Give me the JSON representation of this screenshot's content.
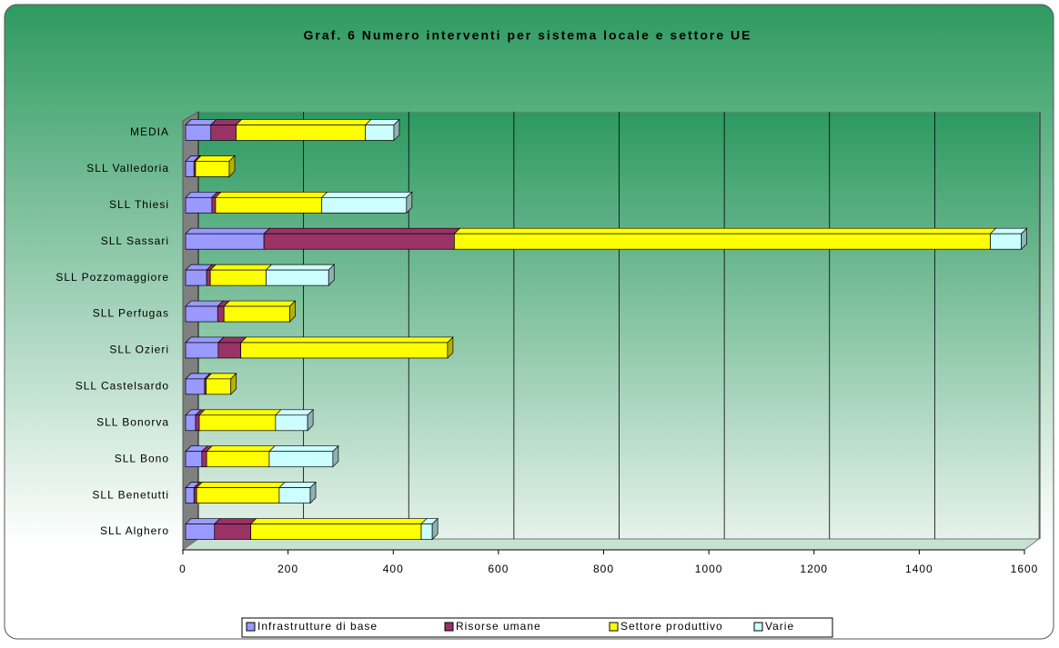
{
  "chart_data": {
    "type": "stacked_bar_horizontal",
    "title": "Graf. 6        Numero interventi per sistema locale e settore UE",
    "categories": [
      "SLL Alghero",
      "SLL Benetutti",
      "SLL Bono",
      "SLL Bonorva",
      "SLL Castelsardo",
      "SLL Ozieri",
      "SLL Perfugas",
      "SLL Pozzomaggiore",
      "SLL Sassari",
      "SLL Thiesi",
      "SLL Valledoria",
      "MEDIA"
    ],
    "series": [
      {
        "name": "Infrastrutture di base",
        "color": "#9999ff",
        "values": [
          55,
          16,
          31,
          19,
          36,
          62,
          61,
          40,
          149,
          50,
          16,
          48
        ]
      },
      {
        "name": "Risorse umane",
        "color": "#993366",
        "values": [
          69,
          5,
          9,
          7,
          3,
          43,
          12,
          7,
          362,
          7,
          3,
          48
        ]
      },
      {
        "name": "Settore produttivo",
        "color": "#ffff00",
        "values": [
          324,
          157,
          119,
          145,
          47,
          393,
          125,
          106,
          1019,
          202,
          64,
          246
        ]
      },
      {
        "name": "Varie",
        "color": "#ccffff",
        "values": [
          21,
          59,
          121,
          61,
          0,
          0,
          0,
          119,
          59,
          161,
          0,
          54
        ]
      }
    ],
    "xlim": [
      0,
      1600
    ],
    "xticks": [
      0,
      200,
      400,
      600,
      800,
      1000,
      1200,
      1400,
      1600
    ],
    "grid": true,
    "legend": "bottom"
  }
}
